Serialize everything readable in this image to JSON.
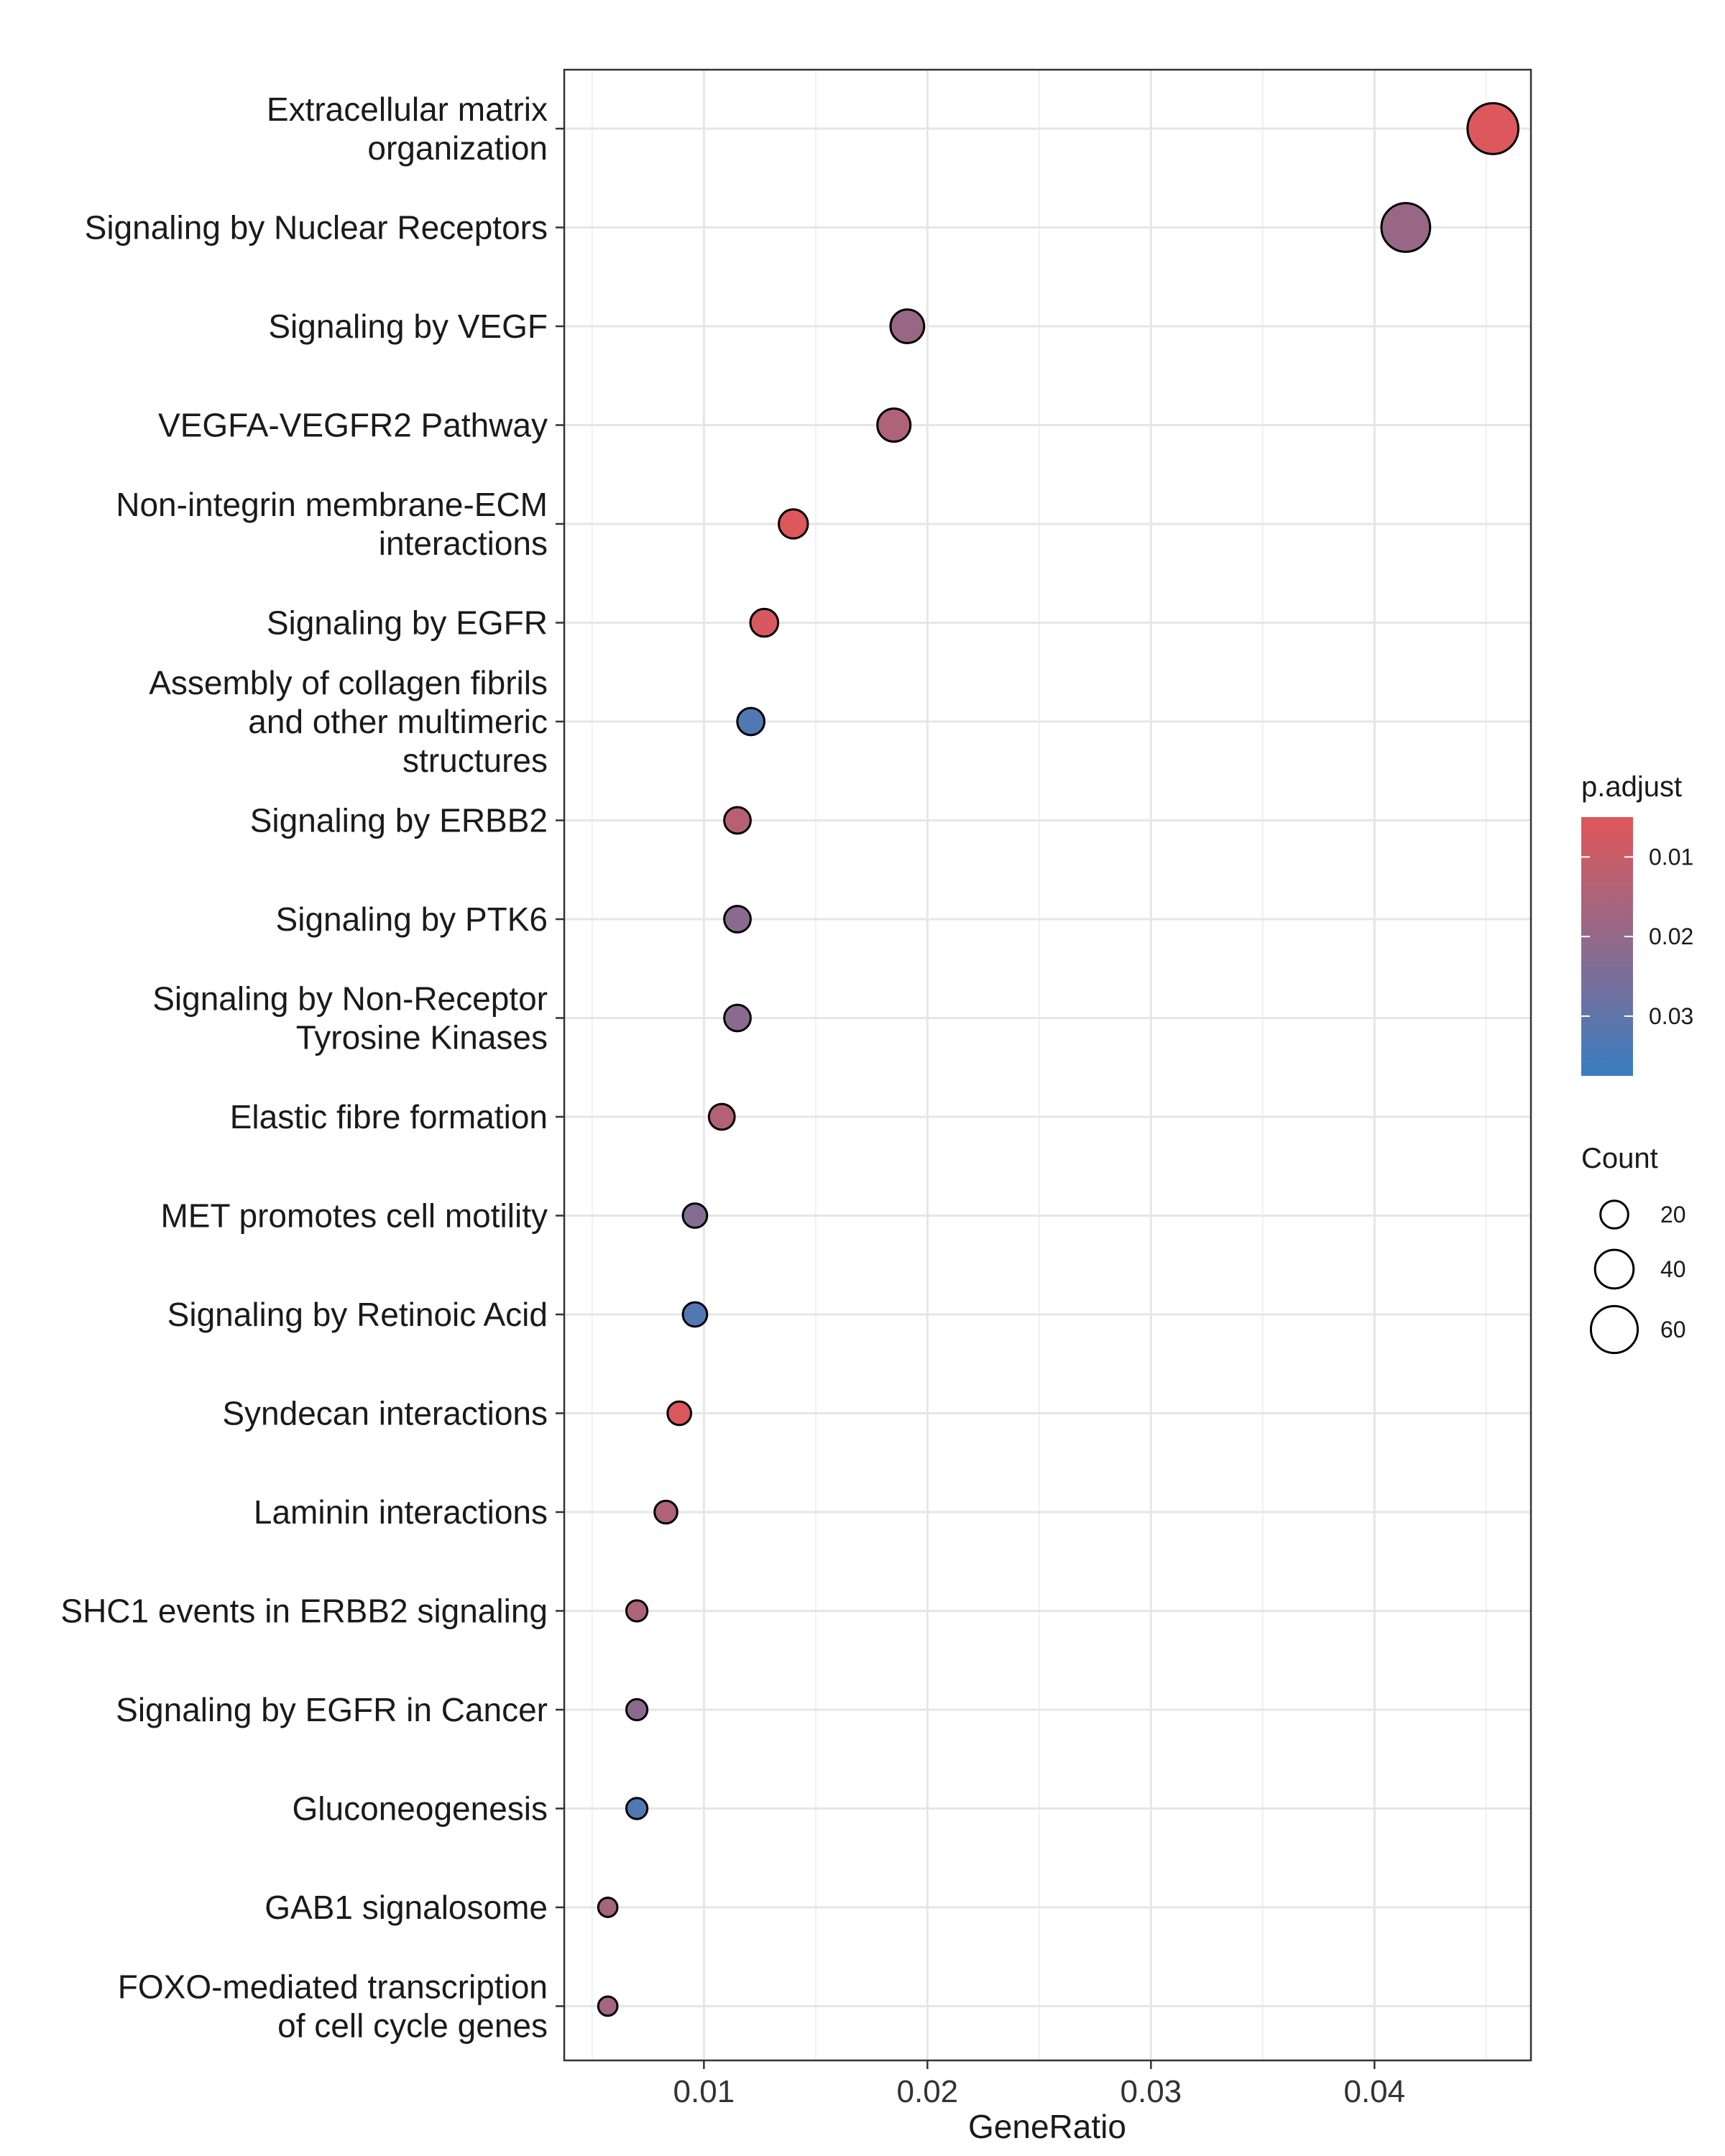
{
  "chart_data": {
    "type": "scatter",
    "xlabel": "GeneRatio",
    "ylabel": "",
    "xlim": [
      0.00375,
      0.047
    ],
    "xticks": [
      0.01,
      0.02,
      0.03,
      0.04
    ],
    "xtick_labels": [
      "0.01",
      "0.02",
      "0.03",
      "0.04"
    ],
    "grid": true,
    "legend_position": "right",
    "categories": [
      "Extracellular matrix\norganization",
      "Signaling by Nuclear Receptors",
      "Signaling by VEGF",
      "VEGFA-VEGFR2 Pathway",
      "Non-integrin membrane-ECM\ninteractions",
      "Signaling by EGFR",
      "Assembly of collagen fibrils\nand other multimeric\nstructures",
      "Signaling by ERBB2",
      "Signaling by PTK6",
      "Signaling by Non-Receptor\nTyrosine Kinases",
      "Elastic fibre formation",
      "MET promotes cell motility",
      "Signaling by Retinoic Acid",
      "Syndecan interactions",
      "Laminin interactions",
      "SHC1 events in ERBB2 signaling",
      "Signaling by EGFR in Cancer",
      "Gluconeogenesis",
      "GAB1 signalosome",
      "FOXO-mediated transcription\nof cell cycle genes"
    ],
    "gene_ratio": [
      0.0453,
      0.0414,
      0.0191,
      0.0185,
      0.014,
      0.0127,
      0.0121,
      0.0115,
      0.0115,
      0.0115,
      0.0108,
      0.0096,
      0.0096,
      0.0089,
      0.0083,
      0.007,
      0.007,
      0.007,
      0.0057,
      0.0057
    ],
    "count": [
      71,
      65,
      30,
      29,
      22,
      20,
      19,
      18,
      18,
      18,
      17,
      15,
      15,
      14,
      13,
      11,
      11,
      11,
      9,
      9
    ],
    "p_adjust": [
      0.006,
      0.019,
      0.019,
      0.015,
      0.006,
      0.007,
      0.033,
      0.013,
      0.022,
      0.022,
      0.014,
      0.023,
      0.033,
      0.006,
      0.015,
      0.015,
      0.022,
      0.033,
      0.017,
      0.017
    ],
    "color_legend": {
      "title": "p.adjust",
      "ticks": [
        0.01,
        0.02,
        0.03
      ],
      "tick_labels": [
        "0.01",
        "0.02",
        "0.03"
      ],
      "range": [
        0.005,
        0.0375
      ],
      "low_color": "#E15759",
      "high_color": "#3A7DC1"
    },
    "size_legend": {
      "title": "Count",
      "values": [
        20,
        40,
        60
      ],
      "labels": [
        "20",
        "40",
        "60"
      ]
    }
  }
}
